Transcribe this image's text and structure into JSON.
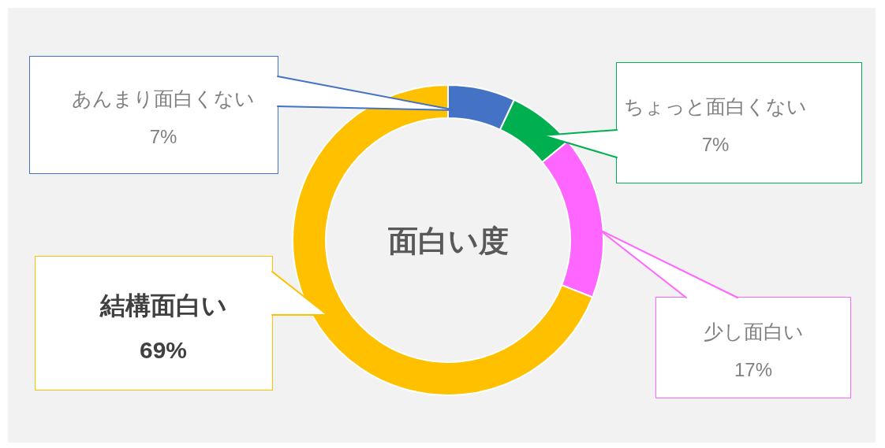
{
  "chart_data": {
    "type": "donut",
    "title": "面白い度",
    "categories": [
      "あんまり面白くない",
      "ちょっと面白くない",
      "少し面白い",
      "結構面白い"
    ],
    "values": [
      7,
      7,
      17,
      69
    ],
    "colors": [
      "#4472c4",
      "#00b050",
      "#ff66ff",
      "#ffc000"
    ],
    "value_labels": [
      "7%",
      "7%",
      "17%",
      "69%"
    ]
  }
}
